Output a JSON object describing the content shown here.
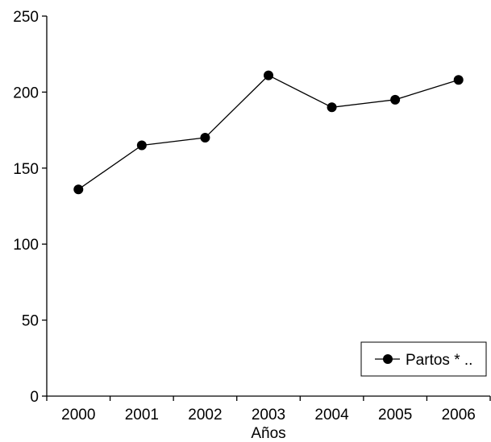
{
  "chart_data": {
    "type": "line",
    "title": "",
    "xlabel": "Años",
    "ylabel": "",
    "categories": [
      "2000",
      "2001",
      "2002",
      "2003",
      "2004",
      "2005",
      "2006"
    ],
    "yticks": [
      "0",
      "50",
      "100",
      "150",
      "200",
      "250"
    ],
    "ylim": [
      0,
      250
    ],
    "grid": false,
    "legend_position": "bottom-right",
    "series": [
      {
        "name": "Partos * ..",
        "values": [
          136,
          165,
          170,
          211,
          190,
          195,
          208
        ],
        "color": "#000000",
        "marker": "filled-circle"
      }
    ]
  }
}
